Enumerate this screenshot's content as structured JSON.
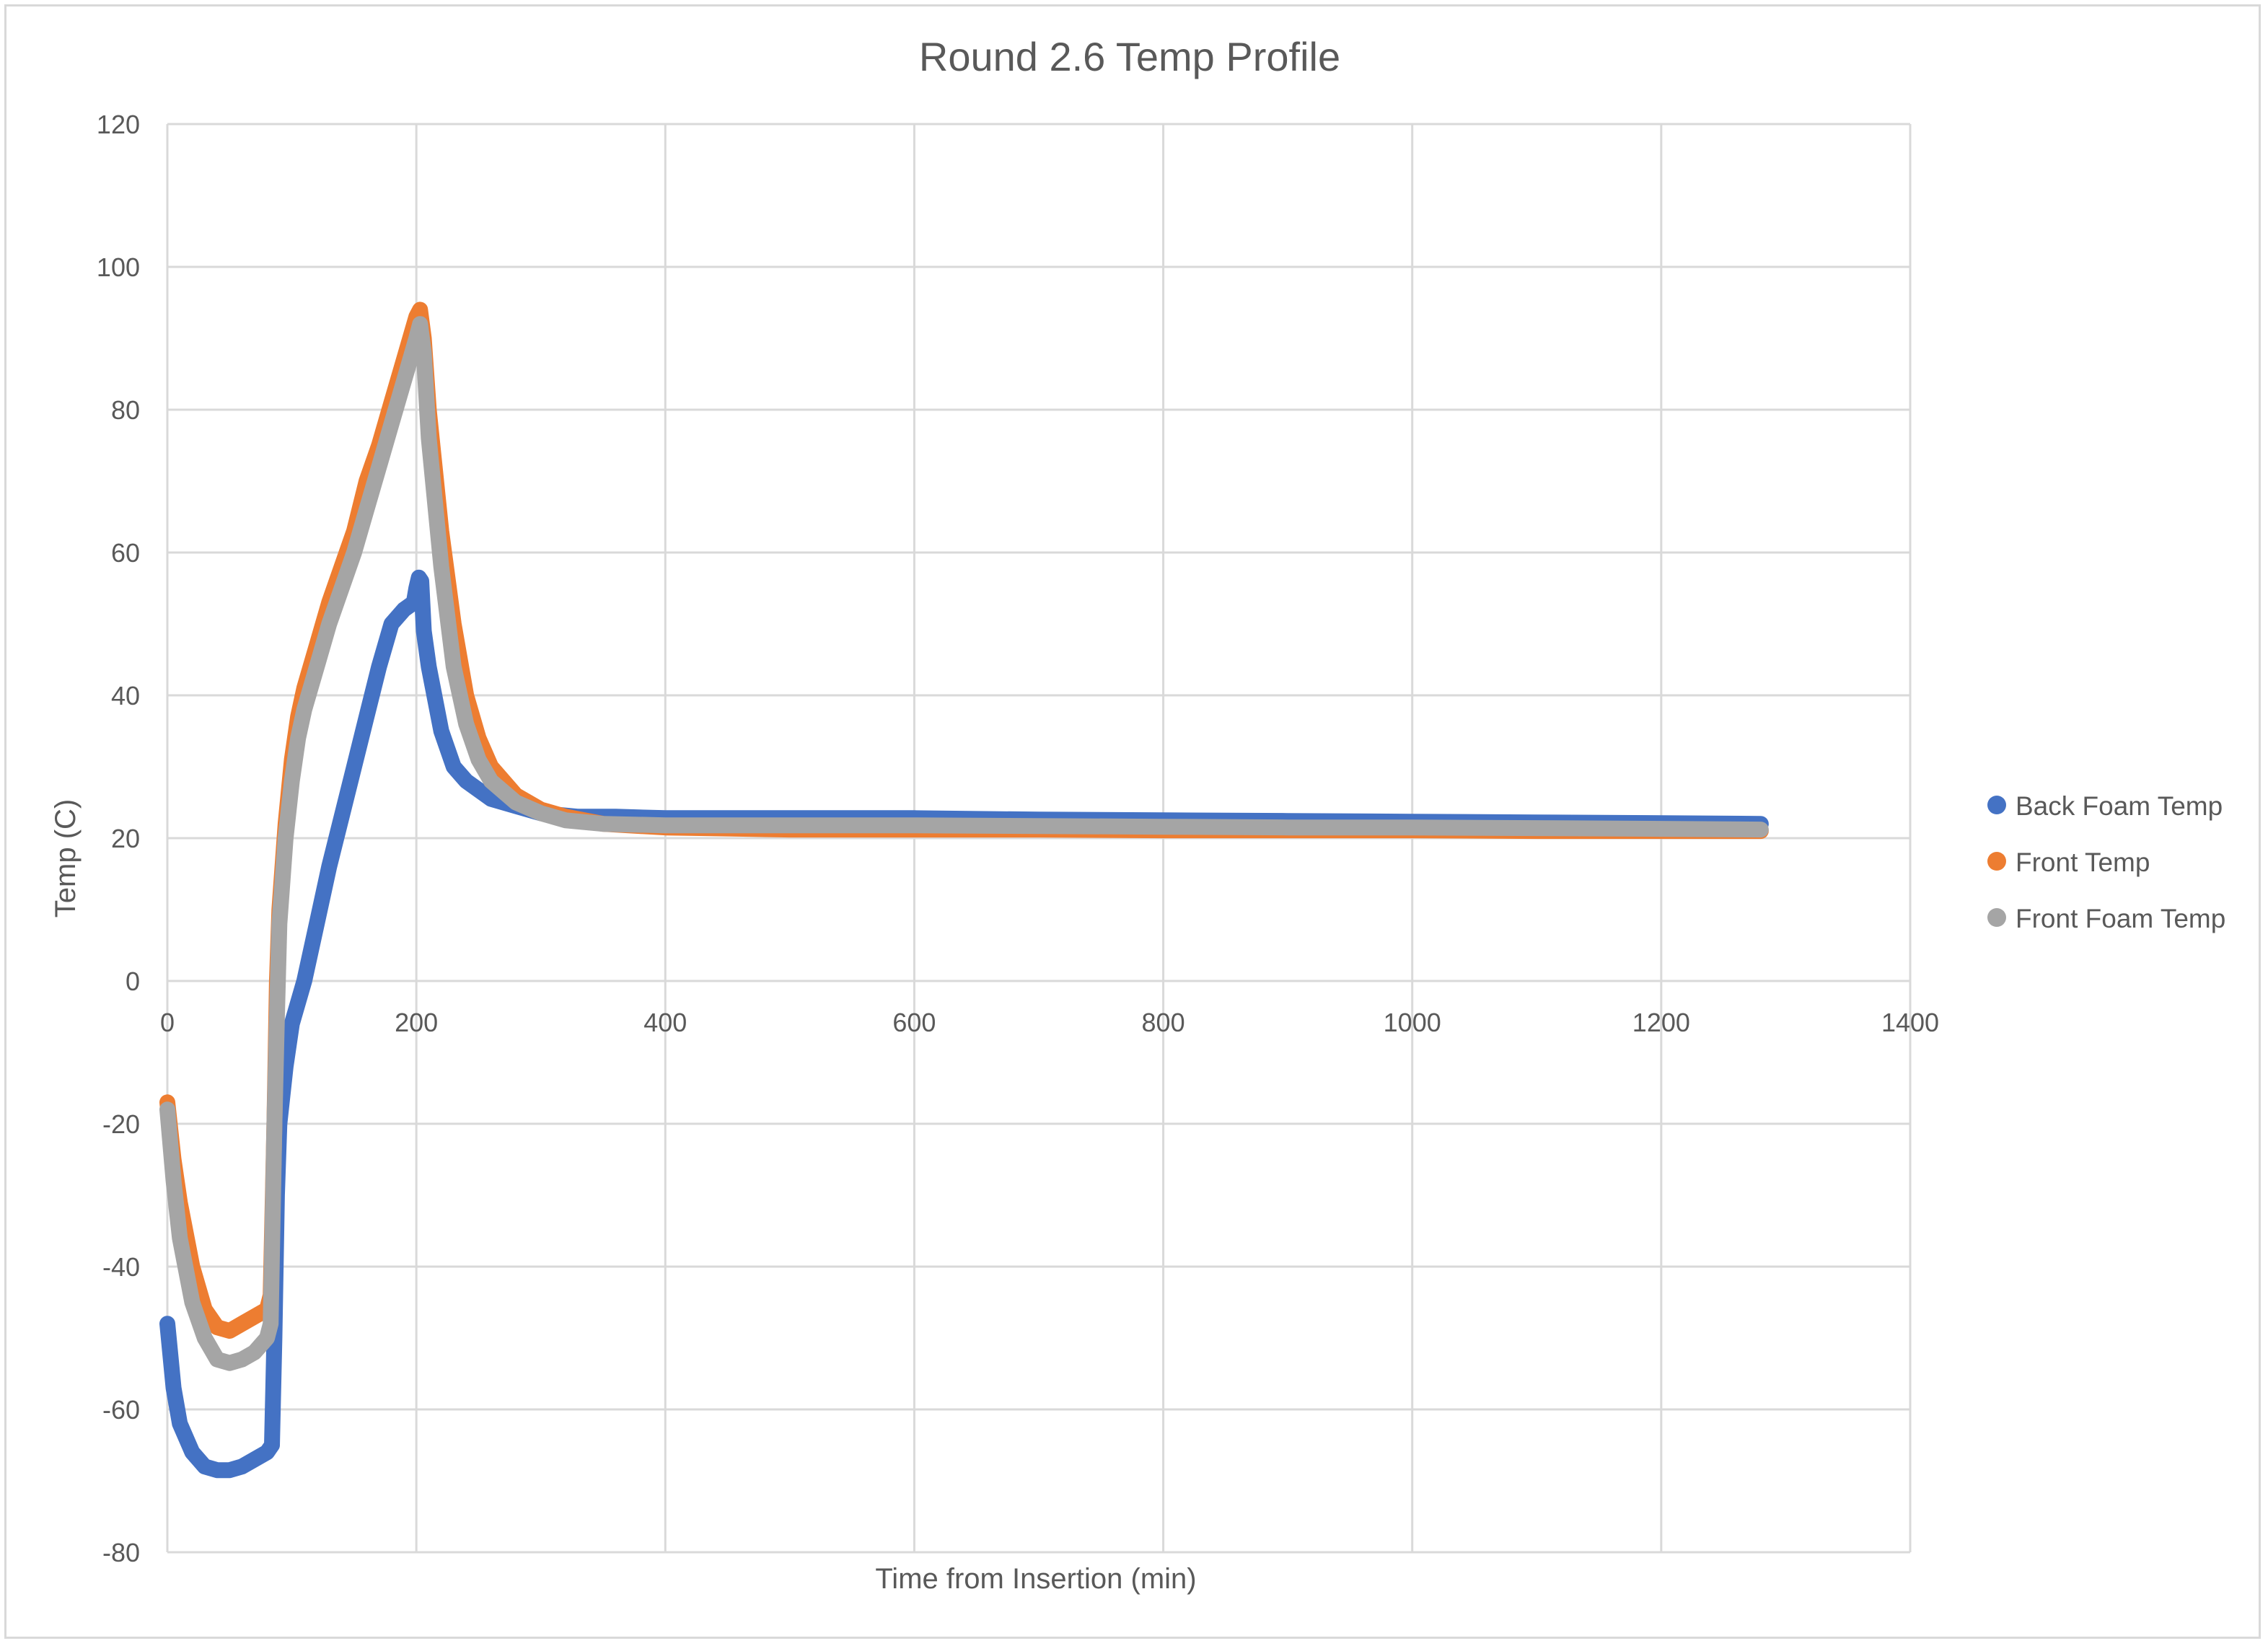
{
  "chart_data": {
    "type": "line",
    "title": "Round 2.6 Temp Profile",
    "xlabel": "Time from Insertion (min)",
    "ylabel": "Temp (C)",
    "xlim": [
      0,
      1400
    ],
    "ylim": [
      -80,
      120
    ],
    "xticks": [
      0,
      200,
      400,
      600,
      800,
      1000,
      1200,
      1400
    ],
    "yticks": [
      -80,
      -60,
      -40,
      -20,
      0,
      20,
      40,
      60,
      80,
      100,
      120
    ],
    "grid": true,
    "legend_position": "right",
    "series": [
      {
        "name": "Back Foam Temp",
        "color": "#4472C4",
        "x": [
          0,
          5,
          10,
          20,
          30,
          40,
          50,
          60,
          70,
          80,
          84,
          86,
          88,
          90,
          95,
          100,
          110,
          120,
          130,
          140,
          150,
          160,
          170,
          180,
          190,
          198,
          200,
          202,
          204,
          206,
          210,
          220,
          230,
          240,
          260,
          280,
          300,
          330,
          360,
          400,
          500,
          600,
          700,
          800,
          900,
          1000,
          1100,
          1200,
          1280
        ],
        "y": [
          -48,
          -57,
          -62,
          -66,
          -68,
          -68.5,
          -68.5,
          -68,
          -67,
          -66,
          -65,
          -50,
          -30,
          -20,
          -12,
          -6,
          0,
          8,
          16,
          23,
          30,
          37,
          44,
          50,
          52,
          53,
          55,
          56.5,
          56,
          49,
          44,
          35,
          30,
          28,
          25.5,
          24.5,
          23.5,
          23,
          23,
          22.8,
          22.8,
          22.8,
          22.6,
          22.5,
          22.4,
          22.3,
          22.2,
          22.1,
          22
        ]
      },
      {
        "name": "Front Temp",
        "color": "#ED7D31",
        "x": [
          0,
          5,
          10,
          20,
          30,
          40,
          50,
          60,
          70,
          80,
          83,
          86,
          88,
          90,
          95,
          100,
          105,
          110,
          120,
          130,
          140,
          150,
          160,
          170,
          180,
          190,
          200,
          203,
          206,
          210,
          220,
          230,
          240,
          250,
          260,
          280,
          300,
          320,
          350,
          400,
          500,
          600,
          700,
          800,
          900,
          1000,
          1100,
          1200,
          1280
        ],
        "y": [
          -17,
          -25,
          -31,
          -40,
          -46,
          -48.5,
          -49,
          -48,
          -47,
          -46,
          -44,
          -20,
          0,
          10,
          22,
          31,
          37,
          41,
          47,
          53,
          58,
          63,
          70,
          75,
          81,
          87,
          93,
          94,
          90,
          80,
          63,
          50,
          40,
          34,
          30,
          26,
          24,
          23,
          22,
          21.5,
          21.2,
          21.2,
          21.2,
          21.1,
          21.1,
          21.1,
          21,
          21,
          21
        ]
      },
      {
        "name": "Front Foam Temp",
        "color": "#A5A5A5",
        "x": [
          0,
          5,
          10,
          20,
          30,
          40,
          50,
          60,
          70,
          80,
          83,
          86,
          88,
          90,
          95,
          100,
          105,
          110,
          120,
          130,
          140,
          150,
          160,
          170,
          180,
          190,
          200,
          203,
          206,
          210,
          220,
          230,
          240,
          250,
          260,
          280,
          300,
          320,
          350,
          400,
          500,
          600,
          700,
          800,
          900,
          1000,
          1100,
          1200,
          1280
        ],
        "y": [
          -18,
          -28,
          -36,
          -45,
          -50,
          -53,
          -53.5,
          -53,
          -52,
          -50,
          -48,
          -20,
          -5,
          8,
          20,
          28,
          34,
          38,
          44,
          50,
          55,
          60,
          66,
          72,
          78,
          84,
          90,
          92,
          88,
          76,
          58,
          44,
          36,
          31,
          28,
          25,
          23.5,
          22.5,
          22,
          21.8,
          21.8,
          21.8,
          21.7,
          21.6,
          21.5,
          21.5,
          21.4,
          21.3,
          21.2
        ]
      }
    ]
  }
}
